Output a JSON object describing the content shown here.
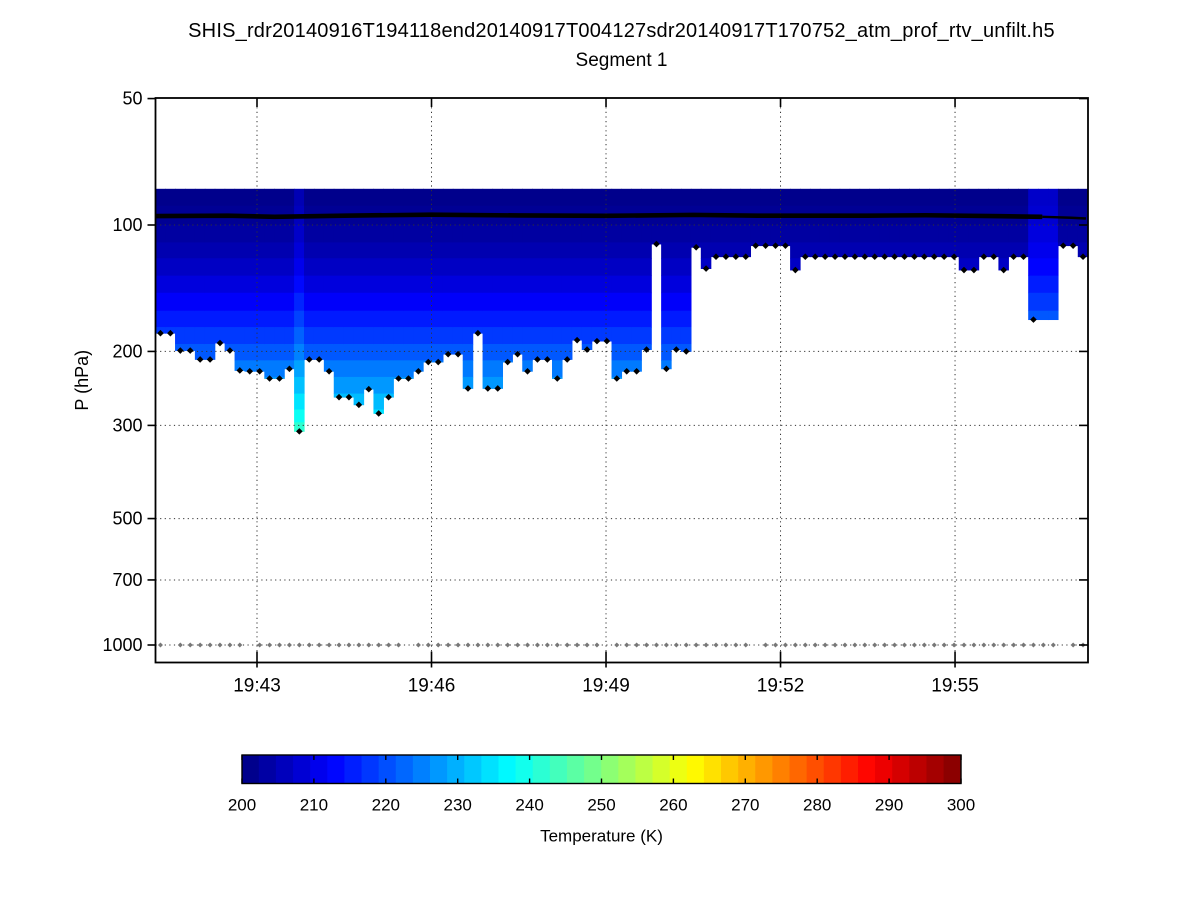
{
  "figure": {
    "title": "SHIS_rdr20140916T194118end20140917T004127sdr20140917T170752_atm_prof_rtv_unfilt.h5",
    "subtitle": "Segment 1"
  },
  "chart_data": {
    "type": "heatmap",
    "title": "SHIS_rdr20140916T194118end20140917T004127sdr20140917T170752_atm_prof_rtv_unfilt.h5",
    "subtitle": "Segment 1",
    "x_axis": {
      "tick_labels": [
        "19:43",
        "19:46",
        "19:49",
        "19:52",
        "19:55"
      ],
      "tick_minutes": [
        0,
        3,
        6,
        9,
        12
      ],
      "range_minutes": [
        -1.75,
        14.27
      ],
      "grid": true
    },
    "y_axis": {
      "label": "P (hPa)",
      "scale": "log",
      "ticks": [
        50,
        100,
        200,
        300,
        500,
        700,
        1000
      ],
      "tick_labels": [
        "50",
        "100",
        "200",
        "300",
        "500",
        "700",
        "1000"
      ],
      "range": [
        50,
        1100
      ],
      "grid": true
    },
    "colorbar": {
      "label": "Temperature (K)",
      "ticks": [
        200,
        210,
        220,
        230,
        240,
        250,
        260,
        270,
        280,
        290,
        300
      ],
      "range": [
        200,
        300
      ],
      "colormap": "jet",
      "n_blocks": 42
    },
    "profiles": {
      "count": 94,
      "top_pressure_hpa": 82,
      "bottom_pressure_hpa": [
        181,
        181,
        199,
        199,
        209,
        209,
        191,
        199,
        222,
        223,
        223,
        232,
        232,
        220,
        310,
        209,
        209,
        223,
        257,
        257,
        268,
        246,
        281,
        257,
        232,
        232,
        223,
        212,
        212,
        203,
        203,
        245,
        181,
        245,
        245,
        212,
        203,
        223,
        209,
        209,
        232,
        209,
        188,
        198,
        189,
        189,
        232,
        223,
        223,
        198,
        111,
        220,
        198,
        200,
        113,
        127,
        119,
        119,
        119,
        119,
        112,
        112,
        112,
        112,
        128,
        119,
        119,
        119,
        119,
        119,
        119,
        119,
        119,
        119,
        119,
        119,
        119,
        119,
        119,
        119,
        119,
        128,
        128,
        119,
        119,
        128,
        119,
        119,
        168,
        168,
        168,
        112,
        112,
        119
      ],
      "no_dot_indices": [
        89,
        90
      ],
      "warm_offset_k": {
        "14": 4,
        "88": 6,
        "89": 6,
        "90": 6
      },
      "bottom_marker_color": "#000000",
      "surface_dot_pressure_hpa": 1000,
      "surface_dot_skip_indices": [
        1,
        9,
        25,
        45,
        60,
        91
      ],
      "surface_dot_color": "#777777"
    },
    "temperature_vs_pressure": {
      "pressure_hpa": [
        82,
        100,
        110,
        120,
        140,
        160,
        180,
        200,
        220,
        245,
        270,
        290,
        305,
        315
      ],
      "temperature_k": [
        200.8,
        202.5,
        204,
        205.5,
        209.5,
        213.5,
        217.5,
        221,
        224.5,
        228,
        232,
        235.5,
        238,
        240
      ]
    },
    "level_edges_hpa": [
      82,
      90,
      100,
      110,
      120,
      132,
      145,
      160,
      175,
      192,
      210,
      230,
      252,
      275,
      295,
      315
    ],
    "aircraft_level_line": {
      "color": "#000000",
      "pressure_points_min_hpa": [
        [
          -1.75,
          95.2
        ],
        [
          -0.5,
          95.0
        ],
        [
          0.3,
          95.6
        ],
        [
          1.5,
          95.0
        ],
        [
          3.0,
          94.5
        ],
        [
          4.5,
          94.9
        ],
        [
          6.0,
          95.1
        ],
        [
          7.5,
          94.6
        ],
        [
          8.6,
          95.0
        ],
        [
          10.5,
          95.0
        ],
        [
          11.5,
          94.8
        ],
        [
          12.8,
          95.3
        ],
        [
          13.5,
          95.6
        ],
        [
          14.0,
          96.1
        ],
        [
          14.25,
          96.5
        ]
      ]
    },
    "grid_color": "#333333",
    "frame_color": "#000000"
  }
}
